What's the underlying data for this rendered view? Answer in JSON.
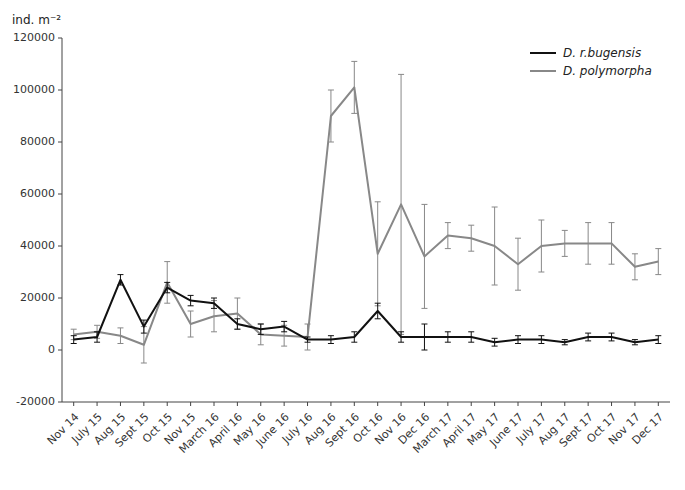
{
  "chart_data": {
    "type": "line",
    "ylabel": "ind. m⁻²",
    "categories": [
      "Nov 14",
      "July 15",
      "Aug 15",
      "Sept 15",
      "Oct 15",
      "Nov 15",
      "March 16",
      "April 16",
      "May 16",
      "June 16",
      "July 16",
      "Aug 16",
      "Sept 16",
      "Oct 16",
      "Nov 16",
      "Dec 16",
      "March 17",
      "April 17",
      "May 17",
      "June 17",
      "July 17",
      "Aug 17",
      "Sept 17",
      "Oct 17",
      "Nov 17",
      "Dec 17"
    ],
    "series": [
      {
        "name": "D. r.bugensis",
        "color": "#111111",
        "values": [
          4000,
          5000,
          27000,
          9000,
          24000,
          19000,
          18000,
          10000,
          8000,
          9000,
          4000,
          4000,
          5000,
          15000,
          5000,
          5000,
          5000,
          5000,
          3000,
          4000,
          4000,
          3000,
          5000,
          5000,
          3000,
          4000
        ],
        "errors": [
          1500,
          2000,
          2000,
          2500,
          2000,
          2000,
          2000,
          2000,
          2000,
          2000,
          1000,
          1500,
          2000,
          3000,
          2000,
          5000,
          2000,
          2000,
          1500,
          1500,
          1500,
          1000,
          1500,
          1500,
          1000,
          1500
        ]
      },
      {
        "name": "D. polymorpha",
        "color": "#888888",
        "values": [
          6000,
          7000,
          5500,
          2000,
          26000,
          10000,
          13000,
          14000,
          6000,
          5500,
          5000,
          90000,
          101000,
          37000,
          56000,
          36000,
          44000,
          43000,
          40000,
          33000,
          40000,
          41000,
          41000,
          41000,
          32000,
          34000
        ],
        "errors": [
          2000,
          2500,
          3000,
          7000,
          8000,
          5000,
          6000,
          6000,
          4000,
          4000,
          5000,
          10000,
          10000,
          20000,
          50000,
          20000,
          5000,
          5000,
          15000,
          10000,
          10000,
          5000,
          8000,
          8000,
          5000,
          5000
        ]
      }
    ],
    "ylim": [
      -20000,
      120000
    ],
    "yticks": [
      -20000,
      0,
      20000,
      40000,
      60000,
      80000,
      100000,
      120000
    ],
    "legend": "upper right",
    "grid": false
  }
}
